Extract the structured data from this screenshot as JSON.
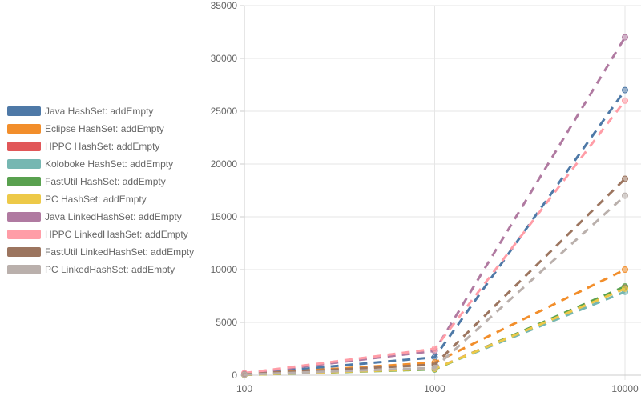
{
  "chart_data": {
    "type": "line",
    "title": "",
    "xlabel": "",
    "ylabel": "",
    "x_scale": "log",
    "x": [
      100,
      1000,
      10000
    ],
    "xlim": [
      100,
      10000
    ],
    "ylim": [
      0,
      35000
    ],
    "x_ticks": [
      "100",
      "1000",
      "10000"
    ],
    "y_ticks": [
      "0",
      "5000",
      "10000",
      "15000",
      "20000",
      "25000",
      "30000",
      "35000"
    ],
    "grid": true,
    "legend_position": "left",
    "line_style": "dashed",
    "series": [
      {
        "name": "Java HashSet: addEmpty",
        "color": "#4e79a7",
        "values": [
          100,
          1700,
          27000
        ]
      },
      {
        "name": "Eclipse HashSet: addEmpty",
        "color": "#f28e2b",
        "values": [
          60,
          1200,
          10000
        ]
      },
      {
        "name": "HPPC HashSet: addEmpty",
        "color": "#e15759",
        "values": [
          30,
          600,
          8300
        ]
      },
      {
        "name": "Koloboke HashSet: addEmpty",
        "color": "#76b7b2",
        "values": [
          30,
          600,
          7900
        ]
      },
      {
        "name": "FastUtil HashSet: addEmpty",
        "color": "#59a14f",
        "values": [
          30,
          550,
          8400
        ]
      },
      {
        "name": "PC HashSet: addEmpty",
        "color": "#edc948",
        "values": [
          30,
          600,
          8200
        ]
      },
      {
        "name": "Java LinkedHashSet: addEmpty",
        "color": "#b07aa1",
        "values": [
          150,
          2300,
          32000
        ]
      },
      {
        "name": "HPPC LinkedHashSet: addEmpty",
        "color": "#ff9da7",
        "values": [
          200,
          2500,
          26000
        ]
      },
      {
        "name": "FastUtil LinkedHashSet: addEmpty",
        "color": "#9c755f",
        "values": [
          80,
          1000,
          18600
        ]
      },
      {
        "name": "PC LinkedHashSet: addEmpty",
        "color": "#bab0ac",
        "values": [
          60,
          700,
          17000
        ]
      }
    ]
  }
}
